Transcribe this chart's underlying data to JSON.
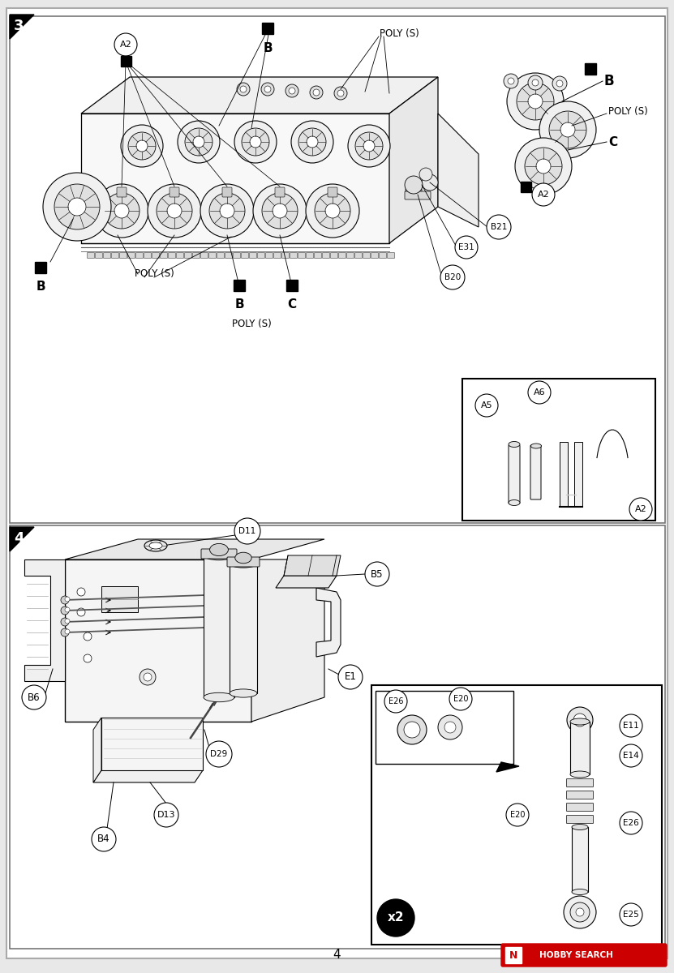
{
  "bg_color": "#e8e8e8",
  "page_bg": "#ffffff",
  "border_color": "#888888",
  "dark_color": "#1a1a1a",
  "page_number": "4",
  "hobby_search_text": "HOBBY SEARCH",
  "step3_label": "3",
  "step4_label": "4"
}
